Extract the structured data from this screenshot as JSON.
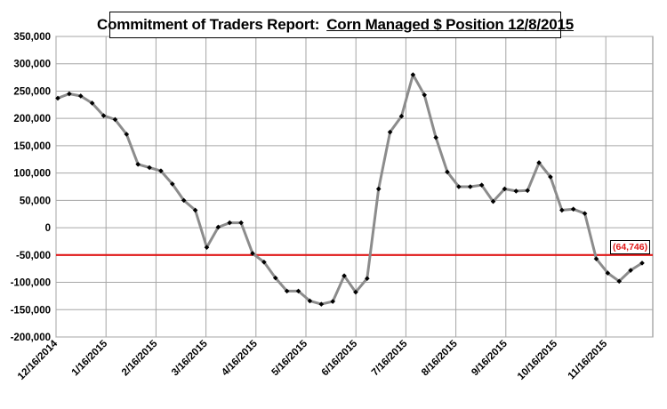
{
  "chart_data": {
    "type": "line",
    "title": "Commitment of Traders Report:",
    "title_emphasis": "Corn Managed $ Position 12/8/2015",
    "ylim": [
      -200000,
      350000
    ],
    "ytick_labels": [
      "350,000",
      "300,000",
      "250,000",
      "200,000",
      "150,000",
      "100,000",
      "50,000",
      "0",
      "-50,000",
      "-100,000",
      "-150,000",
      "-200,000"
    ],
    "xtick_labels": [
      "12/16/2014",
      "1/16/2015",
      "2/16/2015",
      "3/16/2015",
      "4/16/2015",
      "5/16/2015",
      "6/16/2015",
      "7/16/2015",
      "8/16/2015",
      "9/16/2015",
      "10/16/2015",
      "11/16/2015"
    ],
    "grid": true,
    "series_color": "#8c8c8c",
    "marker_color": "#000000",
    "reference_line": {
      "value": -50000,
      "color": "#e01818"
    },
    "last_value_label": "(64,746)",
    "series": [
      {
        "values": [
          237000,
          245000,
          241000,
          228000,
          205000,
          198000,
          171000,
          116000,
          110000,
          104000,
          80000,
          50000,
          32000,
          -36000,
          1000,
          9000,
          9000,
          -47000,
          -63000,
          -92000,
          -116000,
          -116000,
          -134000,
          -140000,
          -135000,
          -88000,
          -118000,
          -93000,
          71000,
          175000,
          204000,
          280000,
          243000,
          165000,
          102000,
          75000,
          75000,
          78000,
          48000,
          71000,
          67000,
          68000,
          119000,
          93000,
          32000,
          34000,
          26000,
          -57000,
          -83000,
          -98000,
          -78000,
          -64746
        ]
      }
    ]
  }
}
